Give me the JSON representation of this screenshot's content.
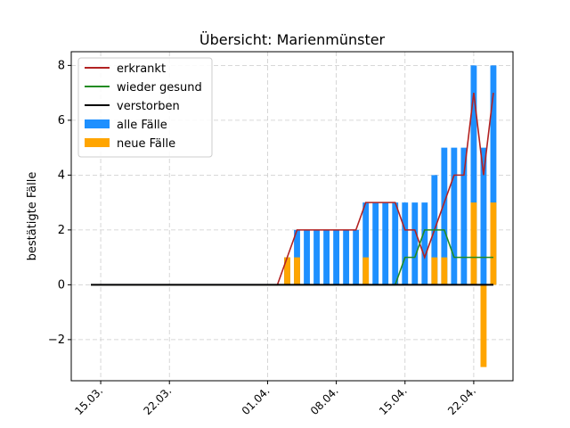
{
  "chart_data": {
    "type": "bar",
    "title": "Übersicht: Marienmünster",
    "xlabel": "",
    "ylabel": "bestätigte Fälle",
    "ylim": [
      -3.5,
      8.5
    ],
    "yticks": [
      -2,
      0,
      2,
      4,
      6,
      8
    ],
    "xlim": [
      "2020-03-12",
      "2020-04-26"
    ],
    "xticks": [
      {
        "date": "2020-03-15",
        "label": "15.03."
      },
      {
        "date": "2020-03-22",
        "label": "22.03."
      },
      {
        "date": "2020-04-01",
        "label": "01.04."
      },
      {
        "date": "2020-04-08",
        "label": "08.04."
      },
      {
        "date": "2020-04-15",
        "label": "15.04."
      },
      {
        "date": "2020-04-22",
        "label": "22.04."
      }
    ],
    "grid": true,
    "legend_position": "top-left",
    "series": [
      {
        "name": "erkrankt",
        "kind": "line",
        "color": "#b22222",
        "points": [
          {
            "date": "2020-03-14",
            "value": 0
          },
          {
            "date": "2020-04-02",
            "value": 0
          },
          {
            "date": "2020-04-04",
            "value": 2
          },
          {
            "date": "2020-04-10",
            "value": 2
          },
          {
            "date": "2020-04-11",
            "value": 3
          },
          {
            "date": "2020-04-14",
            "value": 3
          },
          {
            "date": "2020-04-15",
            "value": 2
          },
          {
            "date": "2020-04-16",
            "value": 2
          },
          {
            "date": "2020-04-17",
            "value": 1
          },
          {
            "date": "2020-04-18",
            "value": 2
          },
          {
            "date": "2020-04-19",
            "value": 3
          },
          {
            "date": "2020-04-20",
            "value": 4
          },
          {
            "date": "2020-04-21",
            "value": 4
          },
          {
            "date": "2020-04-22",
            "value": 7
          },
          {
            "date": "2020-04-23",
            "value": 4
          },
          {
            "date": "2020-04-24",
            "value": 7
          }
        ]
      },
      {
        "name": "wieder gesund",
        "kind": "line",
        "color": "#228b22",
        "points": [
          {
            "date": "2020-03-14",
            "value": 0
          },
          {
            "date": "2020-04-14",
            "value": 0
          },
          {
            "date": "2020-04-15",
            "value": 1
          },
          {
            "date": "2020-04-16",
            "value": 1
          },
          {
            "date": "2020-04-17",
            "value": 2
          },
          {
            "date": "2020-04-19",
            "value": 2
          },
          {
            "date": "2020-04-20",
            "value": 1
          },
          {
            "date": "2020-04-24",
            "value": 1
          }
        ]
      },
      {
        "name": "verstorben",
        "kind": "line",
        "color": "#000000",
        "points": [
          {
            "date": "2020-03-14",
            "value": 0
          },
          {
            "date": "2020-04-24",
            "value": 0
          }
        ]
      },
      {
        "name": "alle Fälle",
        "kind": "bar",
        "color": "#1e90ff",
        "points": [
          {
            "date": "2020-04-03",
            "value": 1
          },
          {
            "date": "2020-04-04",
            "value": 2
          },
          {
            "date": "2020-04-05",
            "value": 2
          },
          {
            "date": "2020-04-06",
            "value": 2
          },
          {
            "date": "2020-04-07",
            "value": 2
          },
          {
            "date": "2020-04-08",
            "value": 2
          },
          {
            "date": "2020-04-09",
            "value": 2
          },
          {
            "date": "2020-04-10",
            "value": 2
          },
          {
            "date": "2020-04-11",
            "value": 3
          },
          {
            "date": "2020-04-12",
            "value": 3
          },
          {
            "date": "2020-04-13",
            "value": 3
          },
          {
            "date": "2020-04-14",
            "value": 3
          },
          {
            "date": "2020-04-15",
            "value": 3
          },
          {
            "date": "2020-04-16",
            "value": 3
          },
          {
            "date": "2020-04-17",
            "value": 3
          },
          {
            "date": "2020-04-18",
            "value": 4
          },
          {
            "date": "2020-04-19",
            "value": 5
          },
          {
            "date": "2020-04-20",
            "value": 5
          },
          {
            "date": "2020-04-21",
            "value": 5
          },
          {
            "date": "2020-04-22",
            "value": 8
          },
          {
            "date": "2020-04-23",
            "value": 5
          },
          {
            "date": "2020-04-24",
            "value": 8
          }
        ]
      },
      {
        "name": "neue Fälle",
        "kind": "bar",
        "color": "#ffa500",
        "points": [
          {
            "date": "2020-04-03",
            "value": 1
          },
          {
            "date": "2020-04-04",
            "value": 1
          },
          {
            "date": "2020-04-11",
            "value": 1
          },
          {
            "date": "2020-04-18",
            "value": 1
          },
          {
            "date": "2020-04-19",
            "value": 1
          },
          {
            "date": "2020-04-22",
            "value": 3
          },
          {
            "date": "2020-04-23",
            "value": -3
          },
          {
            "date": "2020-04-24",
            "value": 3
          }
        ]
      }
    ]
  }
}
